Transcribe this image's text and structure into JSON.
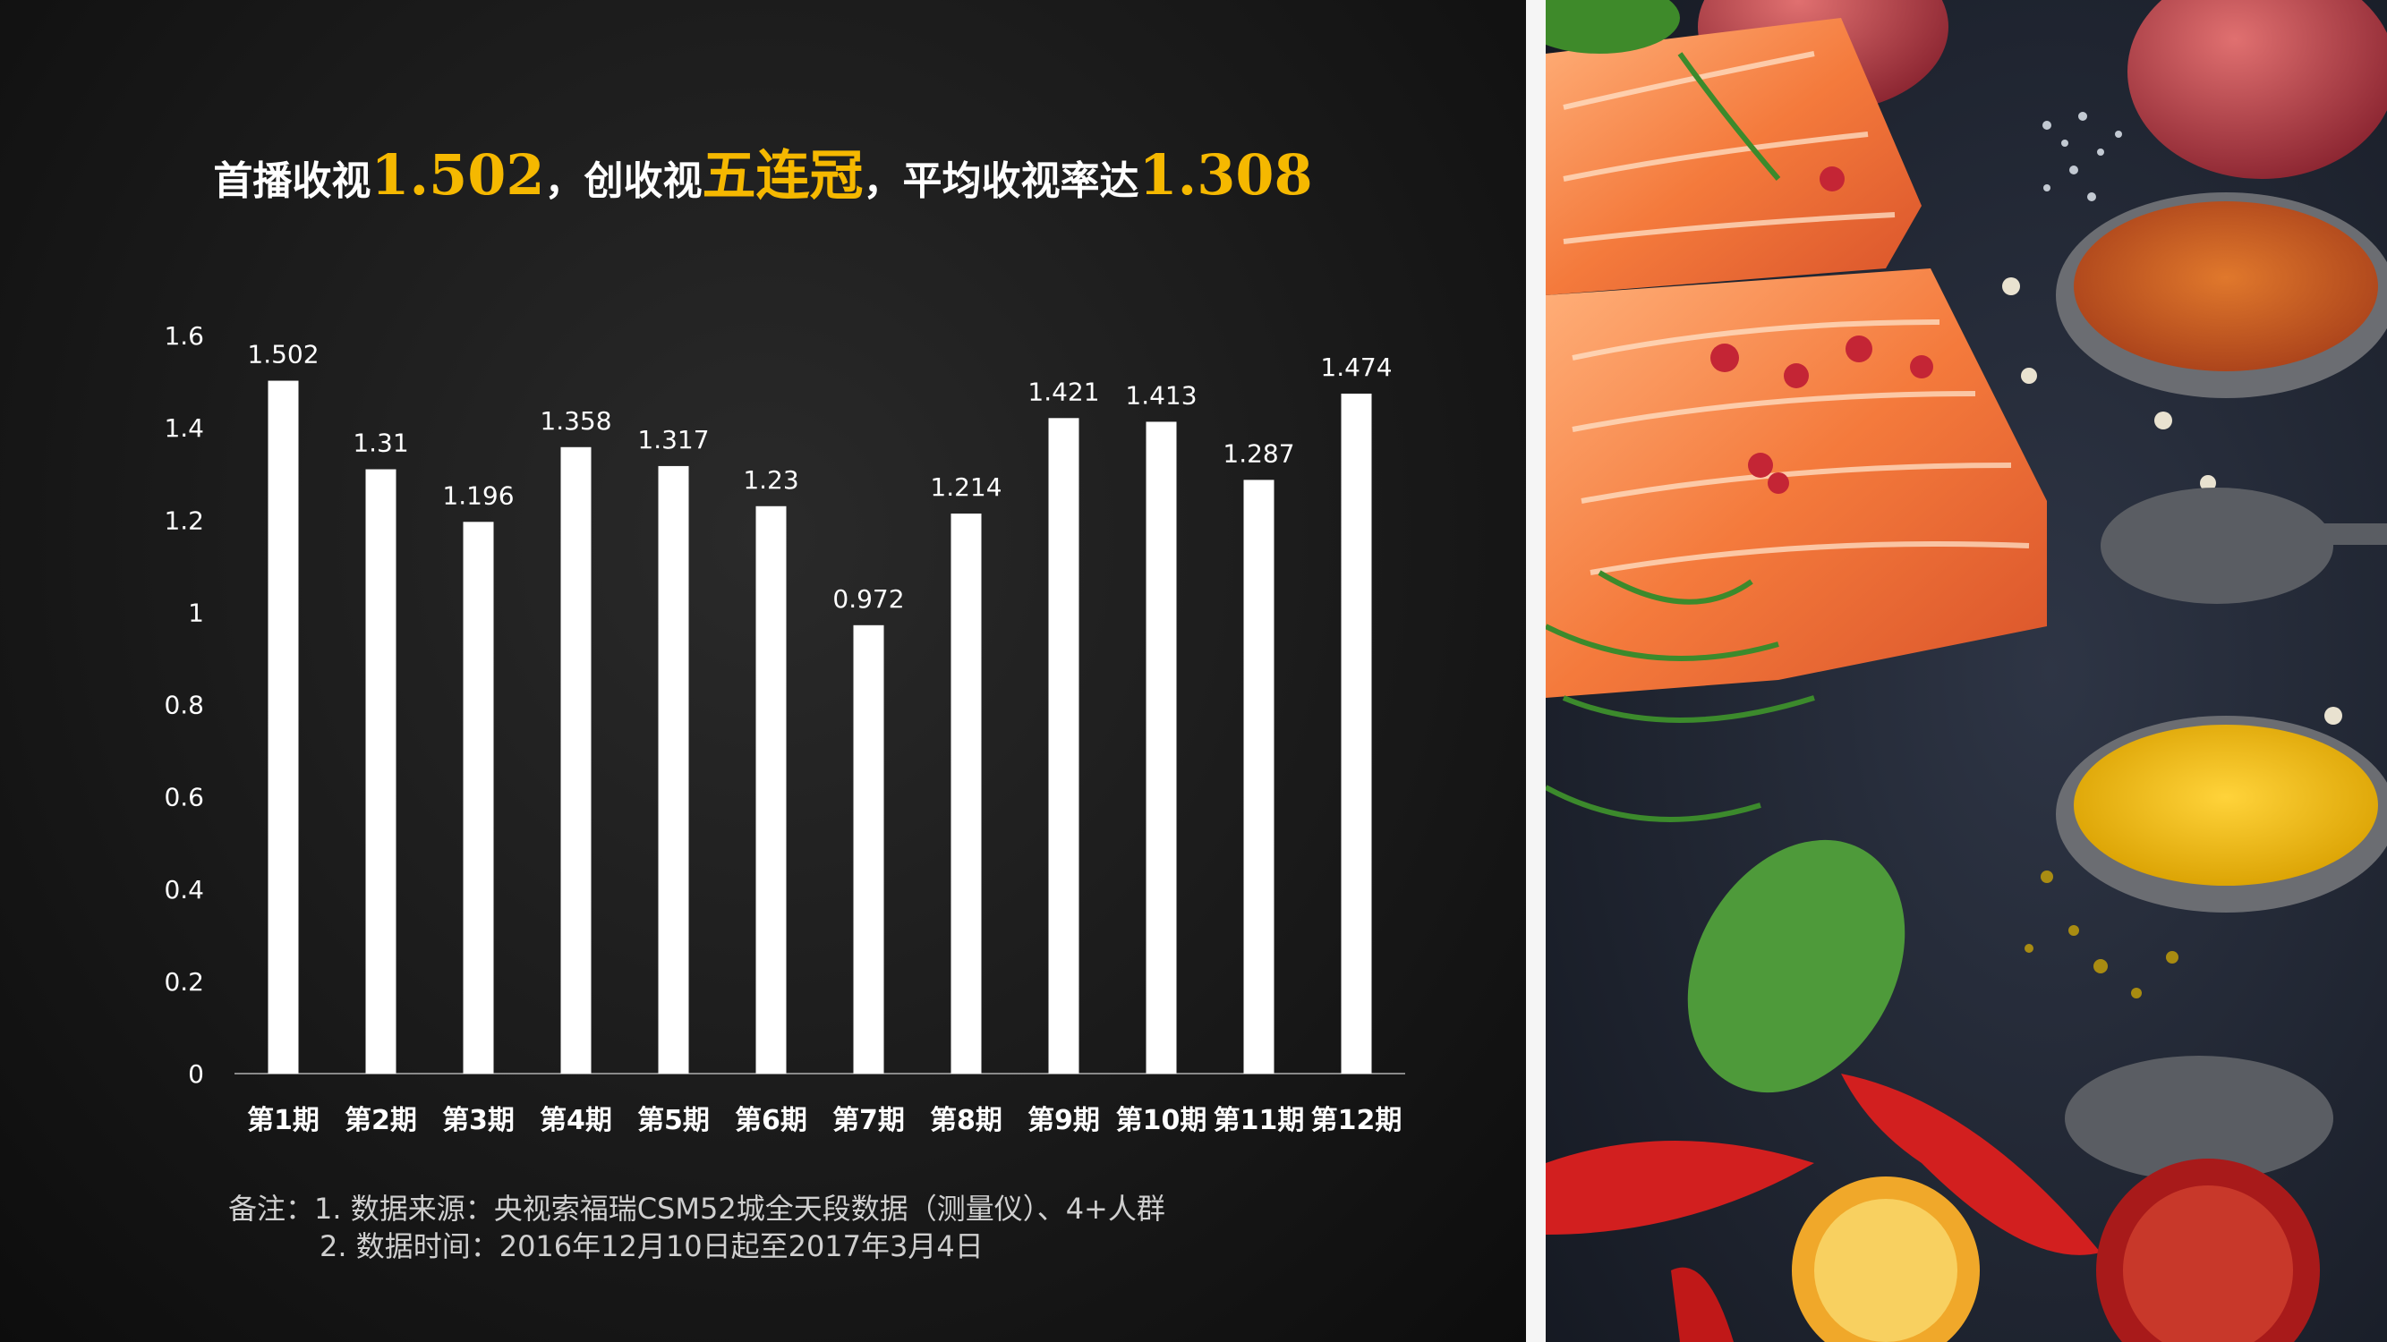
{
  "headline": {
    "part1": "首播收视",
    "value1": "1.502",
    "part2": "，创收视",
    "highlight": "五连冠",
    "part3": "，平均收视率达",
    "value2": "1.308"
  },
  "chart_data": {
    "type": "bar",
    "categories": [
      "第1期",
      "第2期",
      "第3期",
      "第4期",
      "第5期",
      "第6期",
      "第7期",
      "第8期",
      "第9期",
      "第10期",
      "第11期",
      "第12期"
    ],
    "values": [
      1.502,
      1.31,
      1.196,
      1.358,
      1.317,
      1.23,
      0.972,
      1.214,
      1.421,
      1.413,
      1.287,
      1.474
    ],
    "value_labels": [
      "1.502",
      "1.31",
      "1.196",
      "1.358",
      "1.317",
      "1.23",
      "0.972",
      "1.214",
      "1.421",
      "1.413",
      "1.287",
      "1.474"
    ],
    "ylim": [
      0,
      1.6
    ],
    "yticks": [
      "0",
      "0.2",
      "0.4",
      "0.6",
      "0.8",
      "1",
      "1.2",
      "1.4",
      "1.6"
    ],
    "grid": false,
    "bar_color": "#ffffff"
  },
  "notes": {
    "line1": "备注：1. 数据来源：央视索福瑞CSM52城全天段数据（测量仪）、4+人群",
    "line2": "2. 数据时间：2016年12月10日起至2017年3月4日"
  },
  "colors": {
    "accent": "#f5b800",
    "background": "#1a1a1a",
    "text": "#ffffff"
  }
}
